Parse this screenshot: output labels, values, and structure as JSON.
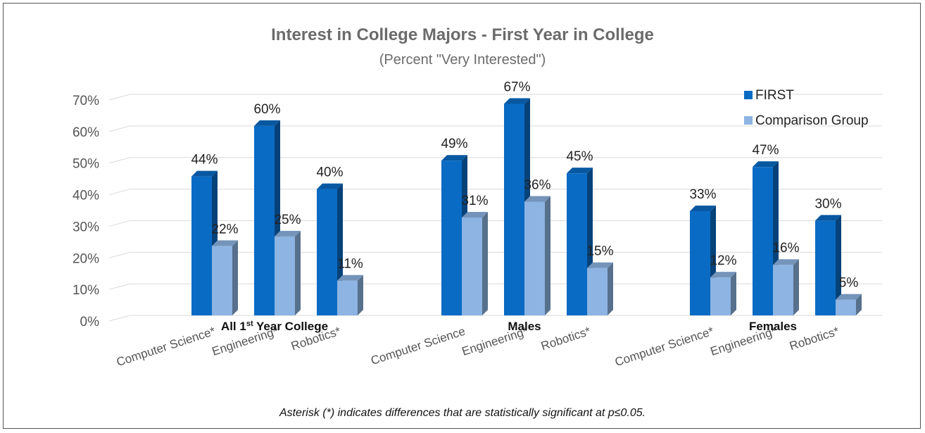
{
  "chart_data": {
    "type": "bar",
    "title": "Interest in College Majors - First Year in College",
    "subtitle": "(Percent \"Very Interested\")",
    "y_ticks": [
      "0%",
      "10%",
      "20%",
      "30%",
      "40%",
      "50%",
      "60%",
      "70%"
    ],
    "ylim": [
      0,
      70
    ],
    "grid": true,
    "legend_position": "top-right",
    "groups": [
      {
        "label": "All 1st Year College",
        "label_main": "All 1",
        "label_sup": "st",
        "label_rest": " Year College",
        "categories": [
          "Computer Science*",
          "Engineering*",
          "Robotics*"
        ],
        "FIRST": [
          44,
          60,
          40
        ],
        "Comparison Group": [
          22,
          25,
          11
        ]
      },
      {
        "label": "Males",
        "label_main": "Males",
        "label_sup": "",
        "label_rest": "",
        "categories": [
          "Computer Science",
          "Engineering*",
          "Robotics*"
        ],
        "FIRST": [
          49,
          67,
          45
        ],
        "Comparison Group": [
          31,
          36,
          15
        ]
      },
      {
        "label": "Females",
        "label_main": "Females",
        "label_sup": "",
        "label_rest": "",
        "categories": [
          "Computer Science*",
          "Engineering*",
          "Robotics*"
        ],
        "FIRST": [
          33,
          47,
          30
        ],
        "Comparison Group": [
          12,
          16,
          5
        ]
      }
    ],
    "series": [
      {
        "name": "FIRST",
        "color": "#0a6bc4"
      },
      {
        "name": "Comparison Group",
        "color": "#8db4e2"
      }
    ],
    "note": "Asterisk (*) indicates differences that are statistically significant at p≤0.05."
  }
}
